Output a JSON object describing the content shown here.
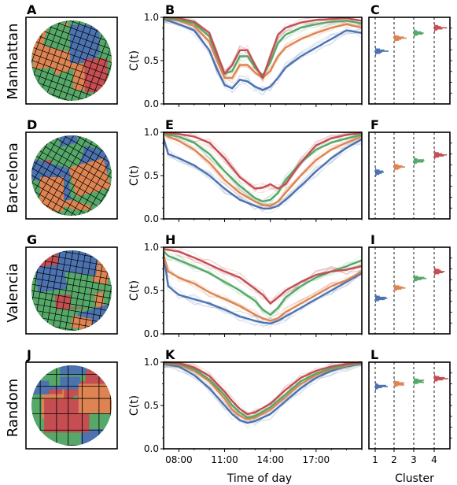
{
  "figure": {
    "xlabel_time": "Time of day",
    "xlabel_cluster": "Cluster",
    "ylabel": "C(t)",
    "time_ticks": [
      "08:00",
      "11:00",
      "14:00",
      "17:00"
    ],
    "y_ticks": [
      "0.0",
      "0.5",
      "1.0"
    ],
    "cluster_ticks": [
      "1",
      "2",
      "3",
      "4"
    ],
    "colors": {
      "c1": "#4c72b0",
      "c2": "#dd8452",
      "c3": "#55a868",
      "c4": "#c44e52"
    }
  },
  "rows": [
    {
      "name": "Manhattan",
      "labels": [
        "A",
        "B",
        "C"
      ]
    },
    {
      "name": "Barcelona",
      "labels": [
        "D",
        "E",
        "F"
      ]
    },
    {
      "name": "Valencia",
      "labels": [
        "G",
        "H",
        "I"
      ]
    },
    {
      "name": "Random",
      "labels": [
        "J",
        "K",
        "L"
      ]
    }
  ],
  "chart_data": [
    {
      "type": "line",
      "panel": "B",
      "city": "Manhattan",
      "x": [
        7,
        8,
        9,
        10,
        10.5,
        11,
        11.5,
        12,
        12.5,
        13,
        13.5,
        14,
        14.5,
        15,
        16,
        17,
        18,
        19,
        20
      ],
      "series": [
        {
          "values": [
            0.98,
            0.92,
            0.85,
            0.62,
            0.4,
            0.22,
            0.18,
            0.28,
            0.26,
            0.2,
            0.16,
            0.2,
            0.3,
            0.42,
            0.55,
            0.65,
            0.75,
            0.85,
            0.82
          ]
        },
        {
          "values": [
            0.99,
            0.96,
            0.9,
            0.72,
            0.5,
            0.3,
            0.3,
            0.45,
            0.45,
            0.36,
            0.3,
            0.38,
            0.55,
            0.65,
            0.75,
            0.82,
            0.88,
            0.92,
            0.88
          ]
        },
        {
          "values": [
            0.99,
            0.97,
            0.93,
            0.78,
            0.55,
            0.35,
            0.38,
            0.55,
            0.55,
            0.42,
            0.33,
            0.48,
            0.7,
            0.8,
            0.88,
            0.92,
            0.95,
            0.96,
            0.93
          ]
        },
        {
          "values": [
            1.0,
            0.99,
            0.95,
            0.82,
            0.58,
            0.35,
            0.45,
            0.62,
            0.62,
            0.45,
            0.3,
            0.55,
            0.8,
            0.88,
            0.94,
            0.97,
            0.98,
            0.99,
            0.96
          ]
        }
      ],
      "ylim": [
        0,
        1
      ]
    },
    {
      "type": "line",
      "panel": "E",
      "city": "Barcelona",
      "x": [
        7,
        7.3,
        8,
        9,
        10,
        11,
        12,
        13,
        13.5,
        14,
        14.5,
        15,
        16,
        17,
        18,
        19,
        20
      ],
      "series": [
        {
          "values": [
            0.93,
            0.75,
            0.7,
            0.62,
            0.5,
            0.35,
            0.22,
            0.15,
            0.12,
            0.12,
            0.15,
            0.22,
            0.38,
            0.55,
            0.7,
            0.82,
            0.92
          ]
        },
        {
          "values": [
            0.98,
            0.95,
            0.9,
            0.8,
            0.65,
            0.45,
            0.3,
            0.2,
            0.16,
            0.15,
            0.2,
            0.3,
            0.5,
            0.68,
            0.8,
            0.88,
            0.95
          ]
        },
        {
          "values": [
            0.99,
            0.97,
            0.95,
            0.88,
            0.75,
            0.55,
            0.38,
            0.24,
            0.2,
            0.22,
            0.3,
            0.45,
            0.65,
            0.8,
            0.88,
            0.93,
            0.97
          ]
        },
        {
          "values": [
            1.0,
            0.99,
            0.98,
            0.95,
            0.88,
            0.7,
            0.48,
            0.35,
            0.36,
            0.4,
            0.35,
            0.4,
            0.65,
            0.85,
            0.93,
            0.97,
            0.99
          ]
        }
      ],
      "ylim": [
        0,
        1
      ]
    },
    {
      "type": "line",
      "panel": "H",
      "city": "Valencia",
      "x": [
        7,
        7.3,
        8,
        9,
        10,
        11,
        12,
        13,
        13.5,
        14,
        14.5,
        15,
        16,
        17,
        18,
        19,
        20
      ],
      "series": [
        {
          "values": [
            0.92,
            0.55,
            0.45,
            0.4,
            0.35,
            0.28,
            0.2,
            0.15,
            0.13,
            0.12,
            0.15,
            0.2,
            0.3,
            0.4,
            0.5,
            0.6,
            0.7
          ]
        },
        {
          "values": [
            0.9,
            0.72,
            0.65,
            0.58,
            0.48,
            0.4,
            0.32,
            0.22,
            0.18,
            0.15,
            0.18,
            0.25,
            0.35,
            0.45,
            0.55,
            0.62,
            0.72
          ]
        },
        {
          "values": [
            0.95,
            0.9,
            0.85,
            0.78,
            0.7,
            0.6,
            0.5,
            0.38,
            0.28,
            0.22,
            0.3,
            0.42,
            0.55,
            0.65,
            0.72,
            0.78,
            0.85
          ]
        },
        {
          "values": [
            0.98,
            0.97,
            0.95,
            0.88,
            0.8,
            0.72,
            0.65,
            0.52,
            0.45,
            0.35,
            0.42,
            0.5,
            0.6,
            0.68,
            0.72,
            0.74,
            0.78
          ]
        }
      ],
      "ylim": [
        0,
        1
      ]
    },
    {
      "type": "line",
      "panel": "K",
      "city": "Random",
      "x": [
        7,
        8,
        9,
        10,
        11,
        11.5,
        12,
        12.5,
        13,
        14,
        15,
        16,
        17,
        18,
        19,
        20
      ],
      "series": [
        {
          "values": [
            0.98,
            0.95,
            0.85,
            0.7,
            0.5,
            0.4,
            0.33,
            0.3,
            0.32,
            0.4,
            0.55,
            0.7,
            0.82,
            0.9,
            0.95,
            0.98
          ]
        },
        {
          "values": [
            0.99,
            0.97,
            0.9,
            0.78,
            0.58,
            0.45,
            0.38,
            0.34,
            0.36,
            0.45,
            0.6,
            0.75,
            0.85,
            0.92,
            0.96,
            0.99
          ]
        },
        {
          "values": [
            0.99,
            0.98,
            0.92,
            0.8,
            0.62,
            0.5,
            0.42,
            0.36,
            0.38,
            0.48,
            0.63,
            0.78,
            0.87,
            0.93,
            0.97,
            0.99
          ]
        },
        {
          "values": [
            1.0,
            0.99,
            0.94,
            0.84,
            0.66,
            0.55,
            0.46,
            0.4,
            0.42,
            0.52,
            0.68,
            0.82,
            0.9,
            0.95,
            0.98,
            1.0
          ]
        }
      ],
      "ylim": [
        0,
        1
      ]
    },
    {
      "type": "histogram",
      "panel": "C",
      "city": "Manhattan",
      "clusters": [
        1,
        2,
        3,
        4
      ],
      "centers": [
        0.61,
        0.76,
        0.82,
        0.88
      ],
      "ylim": [
        0,
        1
      ]
    },
    {
      "type": "histogram",
      "panel": "F",
      "city": "Barcelona",
      "clusters": [
        1,
        2,
        3,
        4
      ],
      "centers": [
        0.54,
        0.6,
        0.67,
        0.74
      ],
      "ylim": [
        0,
        1
      ]
    },
    {
      "type": "histogram",
      "panel": "I",
      "city": "Valencia",
      "clusters": [
        1,
        2,
        3,
        4
      ],
      "centers": [
        0.41,
        0.53,
        0.64,
        0.72
      ],
      "ylim": [
        0,
        1
      ]
    },
    {
      "type": "histogram",
      "panel": "L",
      "city": "Random",
      "clusters": [
        1,
        2,
        3,
        4
      ],
      "centers": [
        0.72,
        0.75,
        0.78,
        0.81
      ],
      "ylim": [
        0,
        1
      ]
    }
  ]
}
